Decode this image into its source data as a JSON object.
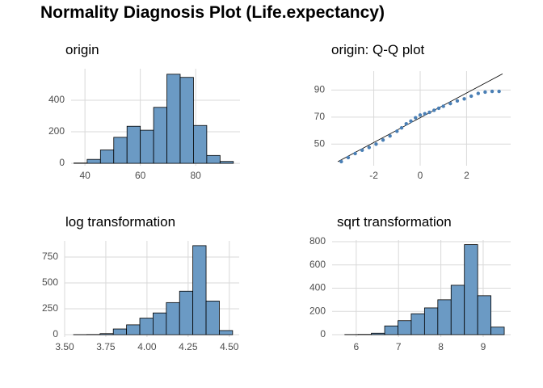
{
  "title": "Normality Diagnosis Plot (Life.expectancy)",
  "chart_data": [
    {
      "type": "histogram",
      "title": "origin",
      "bins": [
        36,
        40.8,
        45.6,
        50.4,
        55.2,
        60,
        64.8,
        69.6,
        74.4,
        79.2,
        84,
        88.8,
        93.6
      ],
      "values": [
        2,
        25,
        85,
        165,
        235,
        210,
        355,
        565,
        545,
        240,
        50,
        12
      ],
      "color": "#6b9ac4",
      "xlim": [
        35,
        96
      ],
      "xticks": [
        40,
        60,
        80
      ],
      "ylim": [
        -15,
        600
      ],
      "yticks": [
        0,
        200,
        400
      ],
      "grid": true
    },
    {
      "type": "scatter",
      "title": "origin: Q-Q plot",
      "x": [
        -3.4,
        -3.1,
        -2.8,
        -2.5,
        -2.2,
        -1.9,
        -1.6,
        -1.3,
        -1.0,
        -0.8,
        -0.6,
        -0.4,
        -0.2,
        0,
        0.2,
        0.4,
        0.6,
        0.8,
        1.0,
        1.3,
        1.6,
        1.9,
        2.2,
        2.5,
        2.8,
        3.1,
        3.4
      ],
      "values": [
        37,
        40,
        43,
        45.5,
        47.5,
        50,
        53,
        56,
        59.5,
        62,
        65,
        67,
        69.5,
        71.5,
        72.5,
        73.5,
        75,
        76.5,
        78,
        80,
        82,
        83.5,
        85.5,
        87.5,
        88.5,
        89,
        89
      ],
      "color": "#4a7fb5",
      "line": {
        "x": [
          -3.55,
          3.55
        ],
        "y": [
          37,
          102
        ]
      },
      "xlim": [
        -3.83,
        3.9
      ],
      "xticks": [
        -2,
        0,
        2
      ],
      "ylim": [
        34,
        104
      ],
      "yticks": [
        50,
        70,
        90
      ],
      "grid": true
    },
    {
      "type": "histogram",
      "title": "log transformation",
      "bins": [
        3.554,
        3.6345,
        3.715,
        3.7955,
        3.876,
        3.9565,
        4.037,
        4.1175,
        4.198,
        4.2785,
        4.359,
        4.4395,
        4.52
      ],
      "values": [
        1,
        2,
        10,
        55,
        95,
        160,
        210,
        310,
        420,
        860,
        325,
        40
      ],
      "color": "#6b9ac4",
      "xlim": [
        3.5,
        4.56
      ],
      "xticks": [
        {
          "value": 3.5,
          "label": "3.50"
        },
        3.75,
        {
          "value": 4,
          "label": "4.00"
        },
        4.25,
        {
          "value": 4.5,
          "label": "4.50"
        }
      ],
      "ylim": [
        -23,
        906
      ],
      "yticks": [
        0,
        250,
        500,
        750
      ],
      "grid": true
    },
    {
      "type": "histogram",
      "title": "sqrt transformation",
      "bins": [
        5.73,
        6.044,
        6.358,
        6.672,
        6.986,
        7.3,
        7.614,
        7.928,
        8.242,
        8.556,
        8.87,
        9.184,
        9.498
      ],
      "values": [
        1,
        2,
        12,
        75,
        120,
        180,
        230,
        300,
        425,
        775,
        335,
        65
      ],
      "color": "#6b9ac4",
      "xlim": [
        5.43,
        9.65
      ],
      "xticks": [
        6,
        7,
        8,
        9
      ],
      "ylim": [
        -21,
        814
      ],
      "yticks": [
        0,
        200,
        400,
        600,
        800
      ],
      "grid": true
    }
  ]
}
